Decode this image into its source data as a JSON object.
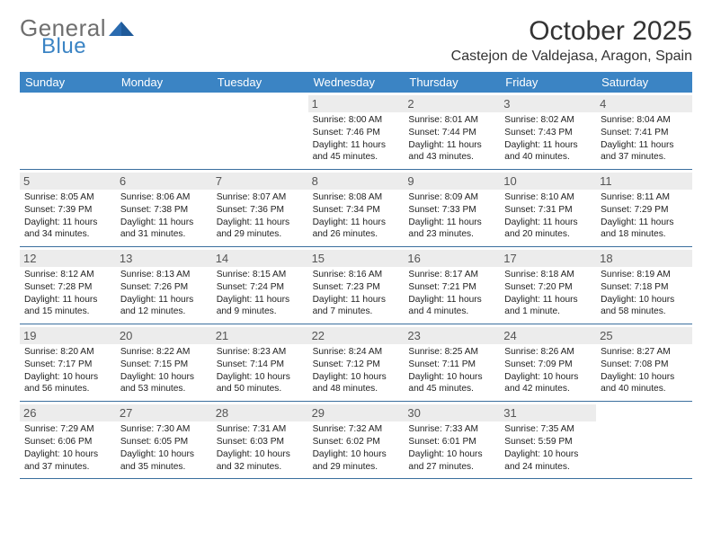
{
  "logo": {
    "text_general": "General",
    "text_blue": "Blue",
    "tri_color": "#2a6bb0"
  },
  "title": "October 2025",
  "location": "Castejon de Valdejasa, Aragon, Spain",
  "colors": {
    "header_bg": "#3b84c4",
    "header_text": "#ffffff",
    "row_divider": "#3b6f9e",
    "daynum_bg": "#ececec",
    "daynum_text": "#555555",
    "body_text": "#222222"
  },
  "day_names": [
    "Sunday",
    "Monday",
    "Tuesday",
    "Wednesday",
    "Thursday",
    "Friday",
    "Saturday"
  ],
  "weeks": [
    [
      {
        "empty": true
      },
      {
        "empty": true
      },
      {
        "empty": true
      },
      {
        "day": "1",
        "sunrise": "8:00 AM",
        "sunset": "7:46 PM",
        "daylight": "11 hours and 45 minutes."
      },
      {
        "day": "2",
        "sunrise": "8:01 AM",
        "sunset": "7:44 PM",
        "daylight": "11 hours and 43 minutes."
      },
      {
        "day": "3",
        "sunrise": "8:02 AM",
        "sunset": "7:43 PM",
        "daylight": "11 hours and 40 minutes."
      },
      {
        "day": "4",
        "sunrise": "8:04 AM",
        "sunset": "7:41 PM",
        "daylight": "11 hours and 37 minutes."
      }
    ],
    [
      {
        "day": "5",
        "sunrise": "8:05 AM",
        "sunset": "7:39 PM",
        "daylight": "11 hours and 34 minutes."
      },
      {
        "day": "6",
        "sunrise": "8:06 AM",
        "sunset": "7:38 PM",
        "daylight": "11 hours and 31 minutes."
      },
      {
        "day": "7",
        "sunrise": "8:07 AM",
        "sunset": "7:36 PM",
        "daylight": "11 hours and 29 minutes."
      },
      {
        "day": "8",
        "sunrise": "8:08 AM",
        "sunset": "7:34 PM",
        "daylight": "11 hours and 26 minutes."
      },
      {
        "day": "9",
        "sunrise": "8:09 AM",
        "sunset": "7:33 PM",
        "daylight": "11 hours and 23 minutes."
      },
      {
        "day": "10",
        "sunrise": "8:10 AM",
        "sunset": "7:31 PM",
        "daylight": "11 hours and 20 minutes."
      },
      {
        "day": "11",
        "sunrise": "8:11 AM",
        "sunset": "7:29 PM",
        "daylight": "11 hours and 18 minutes."
      }
    ],
    [
      {
        "day": "12",
        "sunrise": "8:12 AM",
        "sunset": "7:28 PM",
        "daylight": "11 hours and 15 minutes."
      },
      {
        "day": "13",
        "sunrise": "8:13 AM",
        "sunset": "7:26 PM",
        "daylight": "11 hours and 12 minutes."
      },
      {
        "day": "14",
        "sunrise": "8:15 AM",
        "sunset": "7:24 PM",
        "daylight": "11 hours and 9 minutes."
      },
      {
        "day": "15",
        "sunrise": "8:16 AM",
        "sunset": "7:23 PM",
        "daylight": "11 hours and 7 minutes."
      },
      {
        "day": "16",
        "sunrise": "8:17 AM",
        "sunset": "7:21 PM",
        "daylight": "11 hours and 4 minutes."
      },
      {
        "day": "17",
        "sunrise": "8:18 AM",
        "sunset": "7:20 PM",
        "daylight": "11 hours and 1 minute."
      },
      {
        "day": "18",
        "sunrise": "8:19 AM",
        "sunset": "7:18 PM",
        "daylight": "10 hours and 58 minutes."
      }
    ],
    [
      {
        "day": "19",
        "sunrise": "8:20 AM",
        "sunset": "7:17 PM",
        "daylight": "10 hours and 56 minutes."
      },
      {
        "day": "20",
        "sunrise": "8:22 AM",
        "sunset": "7:15 PM",
        "daylight": "10 hours and 53 minutes."
      },
      {
        "day": "21",
        "sunrise": "8:23 AM",
        "sunset": "7:14 PM",
        "daylight": "10 hours and 50 minutes."
      },
      {
        "day": "22",
        "sunrise": "8:24 AM",
        "sunset": "7:12 PM",
        "daylight": "10 hours and 48 minutes."
      },
      {
        "day": "23",
        "sunrise": "8:25 AM",
        "sunset": "7:11 PM",
        "daylight": "10 hours and 45 minutes."
      },
      {
        "day": "24",
        "sunrise": "8:26 AM",
        "sunset": "7:09 PM",
        "daylight": "10 hours and 42 minutes."
      },
      {
        "day": "25",
        "sunrise": "8:27 AM",
        "sunset": "7:08 PM",
        "daylight": "10 hours and 40 minutes."
      }
    ],
    [
      {
        "day": "26",
        "sunrise": "7:29 AM",
        "sunset": "6:06 PM",
        "daylight": "10 hours and 37 minutes."
      },
      {
        "day": "27",
        "sunrise": "7:30 AM",
        "sunset": "6:05 PM",
        "daylight": "10 hours and 35 minutes."
      },
      {
        "day": "28",
        "sunrise": "7:31 AM",
        "sunset": "6:03 PM",
        "daylight": "10 hours and 32 minutes."
      },
      {
        "day": "29",
        "sunrise": "7:32 AM",
        "sunset": "6:02 PM",
        "daylight": "10 hours and 29 minutes."
      },
      {
        "day": "30",
        "sunrise": "7:33 AM",
        "sunset": "6:01 PM",
        "daylight": "10 hours and 27 minutes."
      },
      {
        "day": "31",
        "sunrise": "7:35 AM",
        "sunset": "5:59 PM",
        "daylight": "10 hours and 24 minutes."
      },
      {
        "empty": true
      }
    ]
  ],
  "labels": {
    "sunrise_prefix": "Sunrise: ",
    "sunset_prefix": "Sunset: ",
    "daylight_prefix": "Daylight: "
  }
}
